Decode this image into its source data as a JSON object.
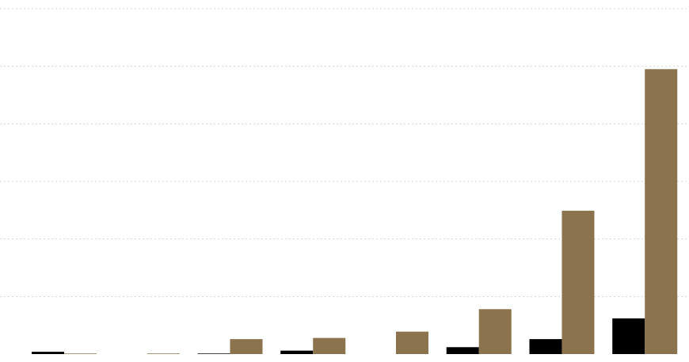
{
  "chart_data": {
    "type": "bar",
    "categories": [
      null,
      null,
      null,
      null,
      null,
      null,
      null,
      null
    ],
    "series": [
      {
        "color": "#000000",
        "values": [
          0.04,
          0,
          0.01,
          0.06,
          0,
          0.12,
          0.26,
          0.62
        ]
      },
      {
        "color": "#8a734d",
        "values": [
          0.01,
          0.01,
          0.26,
          0.28,
          0.39,
          0.78,
          2.49,
          4.95
        ]
      }
    ],
    "ylim": [
      0,
      6
    ],
    "yticks": [
      0,
      1,
      2,
      3,
      4,
      5,
      6
    ],
    "grid": true
  }
}
